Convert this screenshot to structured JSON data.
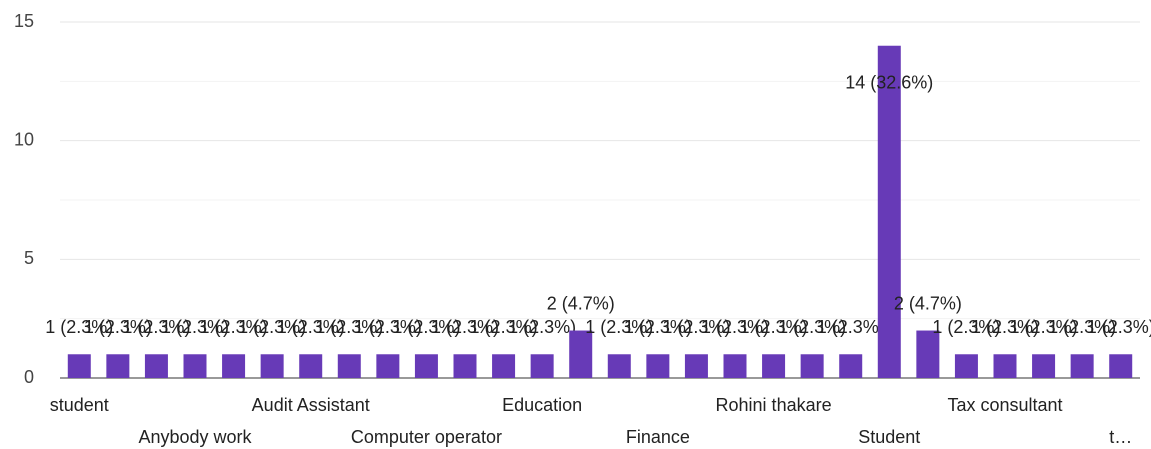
{
  "chart_data": {
    "type": "bar",
    "categories": [
      "student",
      null,
      null,
      "Anybody work",
      null,
      null,
      "Audit Assistant",
      null,
      null,
      "Computer operator",
      null,
      null,
      "Education",
      null,
      null,
      "Finance",
      null,
      null,
      "Rohini thakare",
      null,
      null,
      "Student",
      null,
      null,
      "Tax consultant",
      null,
      null,
      "t…"
    ],
    "values": [
      1,
      1,
      1,
      1,
      1,
      1,
      1,
      1,
      1,
      1,
      1,
      1,
      1,
      2,
      1,
      1,
      1,
      1,
      1,
      1,
      1,
      14,
      2,
      1,
      1,
      1,
      1,
      1
    ],
    "value_labels": [
      "1 (2.3%)",
      "1 (2.3%)",
      "1 (2.3%)",
      "1 (2.3%)",
      "1 (2.3%)",
      "1 (2.3%)",
      "1 (2.3%)",
      "1 (2.3%)",
      "1 (2.3%)",
      "1 (2.3%)",
      "1 (2.3%)",
      "1 (2.3%)",
      "1 (2.3%)",
      "2 (4.7%)",
      "1 (2.3%)",
      "1 (2.3%)",
      "1 (2.3%)",
      "1 (2.3%)",
      "1 (2.3%)",
      "1 (2.3%)",
      "1 (2.3%)",
      "14 (32.6%)",
      "2 (4.7%)",
      "1 (2.3%)",
      "1 (2.3%)",
      "1 (2.3%)",
      "1 (2.3%)",
      "1 (2.3%)"
    ],
    "color": "#673ab7",
    "ylim": [
      0,
      15
    ],
    "yticks": [
      0,
      5,
      10,
      15
    ],
    "minor_yticks": [
      2.5,
      7.5,
      12.5
    ],
    "grid": true
  }
}
